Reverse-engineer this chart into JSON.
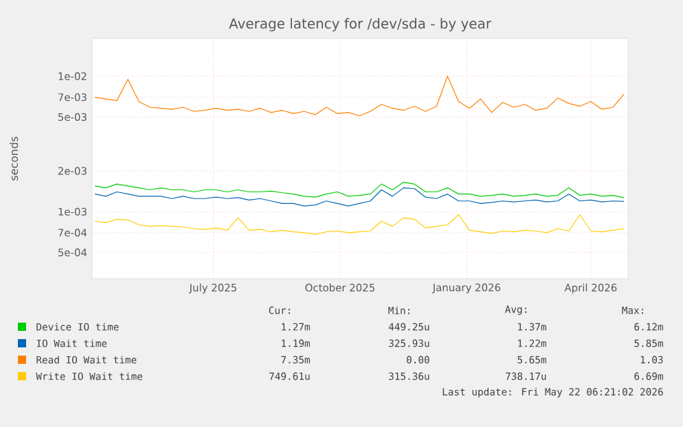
{
  "chart_data": {
    "type": "line",
    "title": "Average latency for /dev/sda - by year",
    "ylabel": "seconds",
    "log": "y",
    "grid": true,
    "legend": "bottom",
    "marker": "none",
    "line_style": "solid",
    "x": [
      "2025-04-06",
      "2025-04-14",
      "2025-04-22",
      "2025-04-30",
      "2025-05-08",
      "2025-05-16",
      "2025-05-24",
      "2025-06-01",
      "2025-06-09",
      "2025-06-17",
      "2025-06-25",
      "2025-07-03",
      "2025-07-11",
      "2025-07-19",
      "2025-07-27",
      "2025-08-04",
      "2025-08-12",
      "2025-08-20",
      "2025-08-28",
      "2025-09-05",
      "2025-09-13",
      "2025-09-21",
      "2025-09-29",
      "2025-10-07",
      "2025-10-15",
      "2025-10-23",
      "2025-10-31",
      "2025-11-08",
      "2025-11-16",
      "2025-11-24",
      "2025-12-02",
      "2025-12-10",
      "2025-12-18",
      "2025-12-26",
      "2026-01-03",
      "2026-01-11",
      "2026-01-19",
      "2026-01-27",
      "2026-02-04",
      "2026-02-12",
      "2026-02-20",
      "2026-02-28",
      "2026-03-08",
      "2026-03-16",
      "2026-03-24",
      "2026-04-01",
      "2026-04-09",
      "2026-04-17",
      "2026-04-25"
    ],
    "xlim": [
      "2025-04-04",
      "2026-04-28"
    ],
    "xticks": [
      {
        "value": "2025-07-01",
        "label": "July 2025"
      },
      {
        "value": "2025-10-01",
        "label": "October 2025"
      },
      {
        "value": "2026-01-01",
        "label": "January 2026"
      },
      {
        "value": "2026-04-01",
        "label": "April 2026"
      }
    ],
    "ylim": [
      0.00032,
      0.019
    ],
    "yticks": [
      {
        "value": 0.0005,
        "label": "5e-04"
      },
      {
        "value": 0.0007,
        "label": "7e-04"
      },
      {
        "value": 0.001,
        "label": "1e-03"
      },
      {
        "value": 0.002,
        "label": "2e-03"
      },
      {
        "value": 0.005,
        "label": "5e-03"
      },
      {
        "value": 0.007,
        "label": "7e-03"
      },
      {
        "value": 0.01,
        "label": "1e-02"
      }
    ],
    "series": [
      {
        "name": "Device IO time",
        "color": "#00cc00",
        "values": [
          0.00155,
          0.0015,
          0.0016,
          0.00155,
          0.0015,
          0.00145,
          0.0015,
          0.00145,
          0.00145,
          0.0014,
          0.00145,
          0.00145,
          0.0014,
          0.00145,
          0.0014,
          0.0014,
          0.00142,
          0.00138,
          0.00135,
          0.0013,
          0.00128,
          0.00135,
          0.0014,
          0.0013,
          0.00132,
          0.00135,
          0.0016,
          0.00145,
          0.00165,
          0.0016,
          0.0014,
          0.0014,
          0.0015,
          0.00135,
          0.00135,
          0.0013,
          0.00132,
          0.00135,
          0.0013,
          0.00132,
          0.00135,
          0.0013,
          0.00132,
          0.0015,
          0.00132,
          0.00135,
          0.0013,
          0.00132,
          0.00127
        ]
      },
      {
        "name": "IO Wait time",
        "color": "#0066b3",
        "values": [
          0.00135,
          0.0013,
          0.0014,
          0.00135,
          0.0013,
          0.0013,
          0.0013,
          0.00125,
          0.0013,
          0.00125,
          0.00125,
          0.00128,
          0.00125,
          0.00127,
          0.00122,
          0.00125,
          0.0012,
          0.00115,
          0.00115,
          0.0011,
          0.00112,
          0.0012,
          0.00115,
          0.0011,
          0.00115,
          0.0012,
          0.00145,
          0.0013,
          0.0015,
          0.00148,
          0.00128,
          0.00125,
          0.00135,
          0.0012,
          0.0012,
          0.00115,
          0.00117,
          0.0012,
          0.00118,
          0.0012,
          0.00122,
          0.00118,
          0.0012,
          0.00135,
          0.0012,
          0.00122,
          0.00118,
          0.0012,
          0.00119
        ]
      },
      {
        "name": "Read IO Wait time",
        "color": "#ff8000",
        "values": [
          0.007,
          0.0068,
          0.0066,
          0.0095,
          0.0065,
          0.0059,
          0.0058,
          0.0057,
          0.0059,
          0.0055,
          0.0056,
          0.0058,
          0.0056,
          0.0057,
          0.0055,
          0.0058,
          0.0054,
          0.0056,
          0.0053,
          0.0055,
          0.0052,
          0.0059,
          0.0053,
          0.0054,
          0.0051,
          0.0055,
          0.0062,
          0.0058,
          0.0056,
          0.006,
          0.0055,
          0.006,
          0.01,
          0.0065,
          0.0058,
          0.0068,
          0.0054,
          0.0064,
          0.0059,
          0.0062,
          0.0056,
          0.0058,
          0.0069,
          0.0063,
          0.006,
          0.0065,
          0.0057,
          0.0059,
          0.00735
        ]
      },
      {
        "name": "Write IO Wait time",
        "color": "#ffcc00",
        "values": [
          0.00085,
          0.00083,
          0.00088,
          0.00087,
          0.0008,
          0.00078,
          0.00079,
          0.00078,
          0.00077,
          0.00075,
          0.00074,
          0.00076,
          0.00073,
          0.0009,
          0.00073,
          0.00074,
          0.00071,
          0.00073,
          0.00071,
          0.0007,
          0.00068,
          0.00071,
          0.00072,
          0.0007,
          0.00071,
          0.00072,
          0.00085,
          0.00078,
          0.0009,
          0.00088,
          0.00076,
          0.00078,
          0.0008,
          0.00095,
          0.00073,
          0.00071,
          0.00069,
          0.00072,
          0.00071,
          0.00073,
          0.00072,
          0.0007,
          0.00075,
          0.00072,
          0.00095,
          0.00072,
          0.00071,
          0.00073,
          0.00075
        ]
      }
    ],
    "annotations": [
      "Cur:",
      "Min:",
      "Avg:",
      "Max:",
      "1.27m",
      "449.25u",
      "1.37m",
      "6.12m",
      "1.19m",
      "325.93u",
      "1.22m",
      "5.85m",
      "7.35m",
      "0.00",
      "5.65m",
      "1.03",
      "749.61u",
      "315.36u",
      "738.17u",
      "6.69m",
      "Last update: Fri May 22 06:21:02 2026"
    ]
  }
}
